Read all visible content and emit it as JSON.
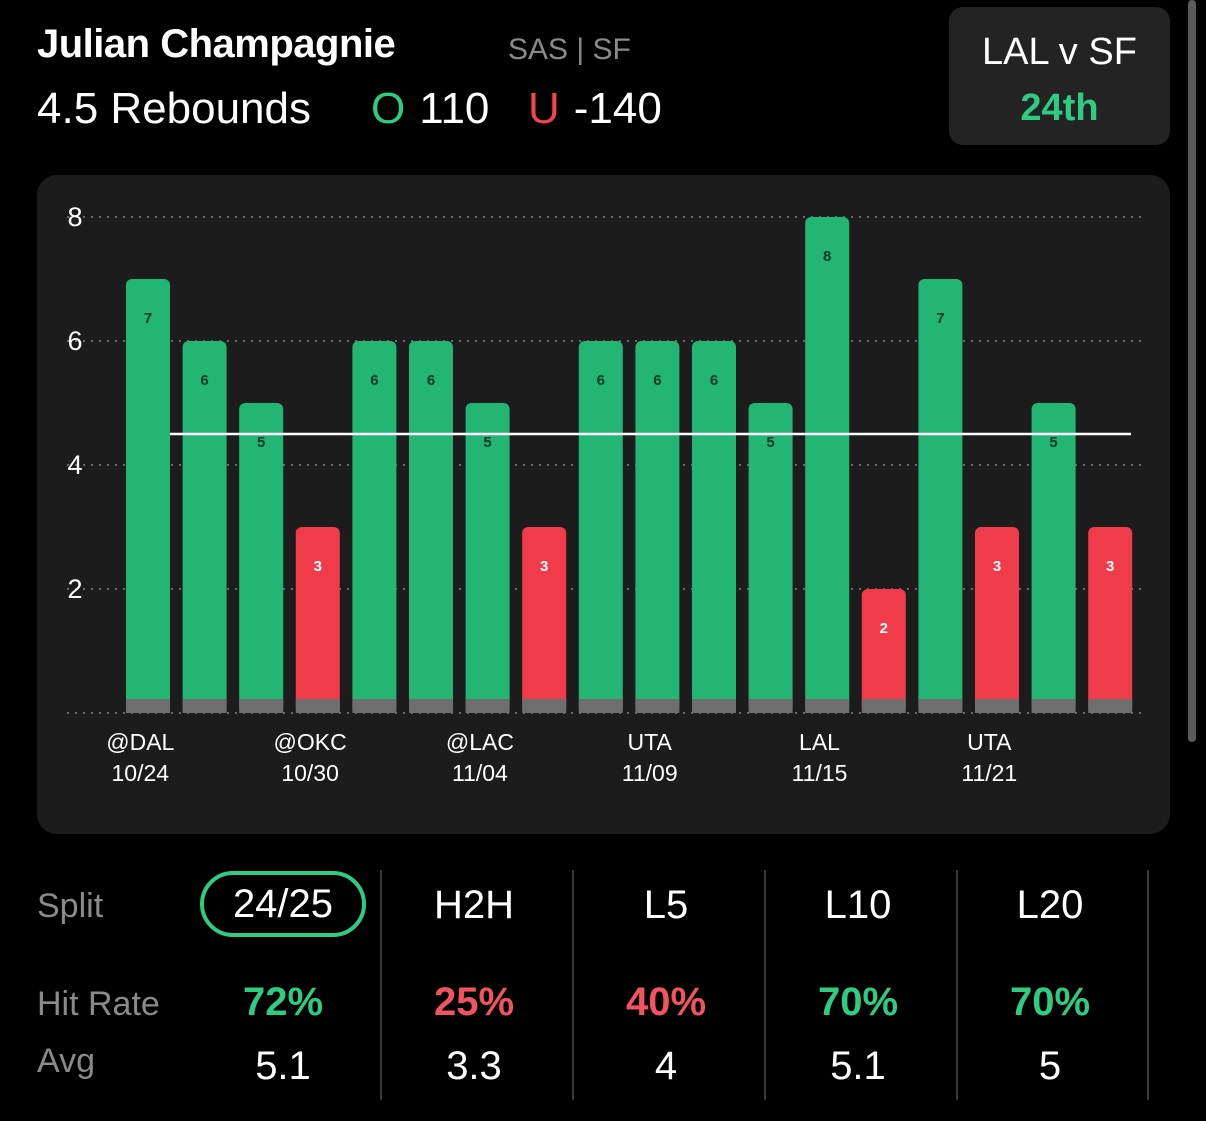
{
  "header": {
    "player_name": "Julian Champagnie",
    "player_meta": "SAS | SF",
    "prop_line": "4.5 Rebounds",
    "over_letter": "O",
    "over_odds": "110",
    "under_letter": "U",
    "under_odds": "-140"
  },
  "matchup": {
    "label": "LAL v SF",
    "rank": "24th"
  },
  "colors": {
    "hit": "#22b573",
    "miss": "#ef3b4a",
    "accent_green": "#2ecc83",
    "accent_red": "#f2434f",
    "card_bg": "#1c1c1c"
  },
  "chart_data": {
    "type": "bar",
    "line": 4.5,
    "ylim": [
      0,
      8
    ],
    "yticks": [
      2,
      4,
      6,
      8
    ],
    "values": [
      7,
      6,
      5,
      3,
      6,
      6,
      5,
      3,
      6,
      6,
      6,
      5,
      8,
      2,
      7,
      3,
      5,
      3
    ],
    "x_labels": [
      {
        "index": 0.5,
        "opponent": "@DAL",
        "date": "10/24"
      },
      {
        "index": 3.5,
        "opponent": "@OKC",
        "date": "10/30"
      },
      {
        "index": 6.5,
        "opponent": "@LAC",
        "date": "11/04"
      },
      {
        "index": 9.5,
        "opponent": "UTA",
        "date": "11/09"
      },
      {
        "index": 12.5,
        "opponent": "LAL",
        "date": "11/15"
      },
      {
        "index": 15.5,
        "opponent": "UTA",
        "date": "11/21"
      }
    ]
  },
  "splits": {
    "row_labels": {
      "split": "Split",
      "hit_rate": "Hit Rate",
      "avg": "Avg"
    },
    "columns": [
      {
        "label": "24/25",
        "hit_rate": "72%",
        "avg": "5.1",
        "hit_color": "#2ecc83",
        "selected": true
      },
      {
        "label": "H2H",
        "hit_rate": "25%",
        "avg": "3.3",
        "hit_color": "#f2545f",
        "selected": false
      },
      {
        "label": "L5",
        "hit_rate": "40%",
        "avg": "4",
        "hit_color": "#f2545f",
        "selected": false
      },
      {
        "label": "L10",
        "hit_rate": "70%",
        "avg": "5.1",
        "hit_color": "#2ecc83",
        "selected": false
      },
      {
        "label": "L20",
        "hit_rate": "70%",
        "avg": "5",
        "hit_color": "#2ecc83",
        "selected": false
      }
    ]
  }
}
